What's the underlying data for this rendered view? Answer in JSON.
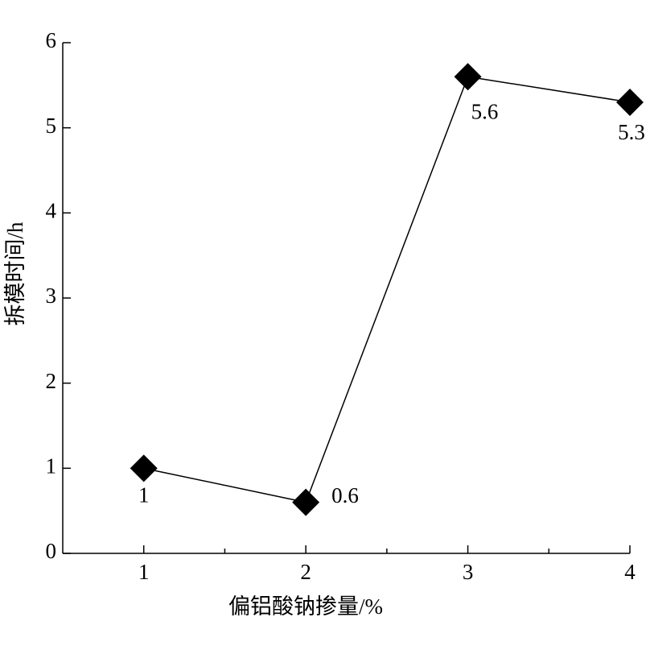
{
  "chart_data": {
    "type": "line",
    "x_label": "偏铝酸钠掺量/%",
    "y_label": "拆模时间/h",
    "x": [
      1,
      2,
      3,
      4
    ],
    "values": [
      1,
      0.6,
      5.6,
      5.3
    ],
    "color": "#000000",
    "marker": "diamond",
    "xlim": [
      0.5,
      4
    ],
    "xticks": [
      1,
      2,
      3,
      4
    ],
    "xminor_ticks": [
      1.5,
      2.5,
      3.5
    ],
    "ylim": [
      0,
      6
    ],
    "yticks": [
      0,
      1,
      2,
      3,
      4,
      5,
      6
    ],
    "grid": false
  }
}
